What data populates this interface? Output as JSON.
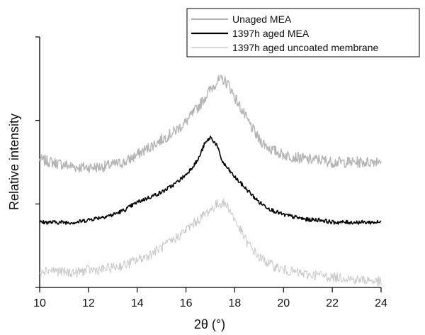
{
  "chart_data": {
    "type": "line",
    "title": "",
    "xlabel": "2θ (°)",
    "ylabel": "Relative intensity",
    "xlim": [
      10,
      24
    ],
    "ylim": [
      0,
      1
    ],
    "x_ticks": [
      10,
      12,
      14,
      16,
      18,
      20,
      22,
      24
    ],
    "y_ticks_labeled": false,
    "grid": false,
    "legend_position": "top-right",
    "series": [
      {
        "name": "Unaged MEA",
        "color": "#b4b4b4",
        "x": [
          10,
          10.5,
          11,
          11.5,
          12,
          12.5,
          13,
          13.5,
          14,
          14.5,
          15,
          15.5,
          16,
          16.5,
          17,
          17.25,
          17.5,
          17.75,
          18,
          18.5,
          19,
          19.5,
          20,
          20.5,
          21,
          21.5,
          22,
          22.5,
          23,
          23.5,
          24
        ],
        "y": [
          0.51,
          0.5,
          0.49,
          0.48,
          0.48,
          0.48,
          0.49,
          0.5,
          0.53,
          0.56,
          0.59,
          0.62,
          0.66,
          0.72,
          0.79,
          0.82,
          0.83,
          0.81,
          0.76,
          0.67,
          0.59,
          0.55,
          0.53,
          0.52,
          0.51,
          0.51,
          0.5,
          0.5,
          0.5,
          0.5,
          0.51
        ]
      },
      {
        "name": "1397h aged MEA",
        "color": "#000000",
        "x": [
          10,
          10.5,
          11,
          11.5,
          12,
          12.5,
          13,
          13.5,
          14,
          14.5,
          15,
          15.5,
          16,
          16.5,
          16.75,
          17,
          17.25,
          17.5,
          18,
          18.5,
          19,
          19.5,
          20,
          20.5,
          21,
          21.5,
          22,
          22.5,
          23,
          23.5,
          24
        ],
        "y": [
          0.26,
          0.26,
          0.26,
          0.26,
          0.27,
          0.28,
          0.29,
          0.31,
          0.34,
          0.36,
          0.38,
          0.41,
          0.45,
          0.51,
          0.57,
          0.6,
          0.57,
          0.5,
          0.44,
          0.39,
          0.34,
          0.31,
          0.29,
          0.28,
          0.27,
          0.27,
          0.26,
          0.26,
          0.26,
          0.26,
          0.26
        ]
      },
      {
        "name": "1397h aged uncoated membrane",
        "color": "#c8c8c8",
        "x": [
          10,
          10.5,
          11,
          11.5,
          12,
          12.5,
          13,
          13.5,
          14,
          14.5,
          15,
          15.5,
          16,
          16.5,
          17,
          17.25,
          17.5,
          17.75,
          18,
          18.5,
          19,
          19.5,
          20,
          20.5,
          21,
          21.5,
          22,
          22.5,
          23,
          23.5,
          24
        ],
        "y": [
          0.07,
          0.07,
          0.06,
          0.06,
          0.07,
          0.07,
          0.08,
          0.09,
          0.11,
          0.13,
          0.16,
          0.19,
          0.23,
          0.27,
          0.31,
          0.33,
          0.34,
          0.32,
          0.27,
          0.18,
          0.12,
          0.09,
          0.07,
          0.06,
          0.05,
          0.05,
          0.04,
          0.04,
          0.03,
          0.03,
          0.02
        ]
      }
    ]
  }
}
